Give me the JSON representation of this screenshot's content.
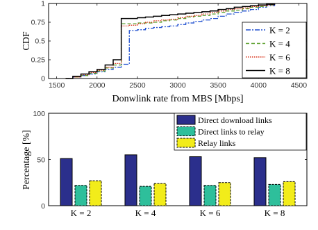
{
  "chart_data": [
    {
      "type": "line",
      "subtype": "cdf",
      "xlabel": "Donwlink rate from MBS [Mbps]",
      "ylabel": "CDF",
      "xlim": [
        1400,
        4600
      ],
      "ylim": [
        0,
        1
      ],
      "xticks": [
        "1500",
        "2000",
        "2500",
        "3000",
        "3500",
        "4000",
        "4500"
      ],
      "yticks": [
        "0",
        "0.25",
        "0.5",
        "0.75",
        "1"
      ],
      "legend": "right-middle",
      "series": [
        {
          "name": "K = 2",
          "color": "#1f4fcf",
          "dash": "7,2,2,2",
          "x": [
            1610,
            1700,
            1800,
            1900,
            2000,
            2100,
            2200,
            2300,
            2400,
            2500,
            2600,
            2700,
            2800,
            2900,
            3000,
            3100,
            3200,
            3300,
            3400,
            3500,
            3600,
            3700,
            3800,
            3900,
            4000,
            4100,
            4200
          ],
          "y": [
            0.0,
            0.02,
            0.04,
            0.06,
            0.09,
            0.12,
            0.15,
            0.19,
            0.64,
            0.65,
            0.67,
            0.68,
            0.69,
            0.7,
            0.72,
            0.74,
            0.76,
            0.78,
            0.8,
            0.83,
            0.86,
            0.88,
            0.9,
            0.92,
            0.95,
            0.97,
            1.0
          ]
        },
        {
          "name": "K = 4",
          "color": "#5aa02c",
          "dash": "5,3",
          "x": [
            1610,
            1700,
            1800,
            1900,
            2000,
            2100,
            2200,
            2300,
            2400,
            2500,
            2600,
            2700,
            2800,
            2900,
            3000,
            3100,
            3200,
            3300,
            3400,
            3500,
            3600,
            3700,
            3800,
            3900,
            4000,
            4100,
            4200
          ],
          "y": [
            0.0,
            0.02,
            0.04,
            0.07,
            0.1,
            0.14,
            0.18,
            0.73,
            0.73,
            0.74,
            0.74,
            0.75,
            0.77,
            0.78,
            0.8,
            0.82,
            0.83,
            0.84,
            0.86,
            0.88,
            0.9,
            0.91,
            0.93,
            0.95,
            0.96,
            0.98,
            1.0
          ]
        },
        {
          "name": "K = 6",
          "color": "#d9331a",
          "dash": "1.5,1.5",
          "x": [
            1610,
            1700,
            1800,
            1900,
            2000,
            2100,
            2200,
            2300,
            2400,
            2500,
            2600,
            2700,
            2800,
            2900,
            3000,
            3100,
            3200,
            3300,
            3400,
            3500,
            3600,
            3700,
            3800,
            3900,
            4000,
            4100,
            4200
          ],
          "y": [
            0.0,
            0.02,
            0.05,
            0.08,
            0.11,
            0.15,
            0.2,
            0.7,
            0.71,
            0.73,
            0.75,
            0.77,
            0.78,
            0.79,
            0.81,
            0.83,
            0.84,
            0.86,
            0.88,
            0.9,
            0.92,
            0.93,
            0.94,
            0.96,
            0.97,
            0.98,
            1.0
          ]
        },
        {
          "name": "K = 8",
          "color": "#000000",
          "dash": "",
          "x": [
            1610,
            1700,
            1800,
            1900,
            2000,
            2100,
            2200,
            2300,
            2400,
            2500,
            2600,
            2700,
            2800,
            2900,
            3000,
            3100,
            3200,
            3300,
            3400,
            3500,
            3600,
            3700,
            3800,
            3900,
            4000,
            4100,
            4200
          ],
          "y": [
            0.0,
            0.03,
            0.06,
            0.09,
            0.12,
            0.18,
            0.25,
            0.8,
            0.8,
            0.81,
            0.82,
            0.83,
            0.84,
            0.85,
            0.86,
            0.87,
            0.88,
            0.89,
            0.9,
            0.92,
            0.93,
            0.95,
            0.96,
            0.97,
            0.98,
            0.99,
            1.0
          ]
        }
      ]
    },
    {
      "type": "bar",
      "categories": [
        "K = 2",
        "K = 4",
        "K = 6",
        "K = 8"
      ],
      "ylabel": "Percentage [%]",
      "ylim": [
        0,
        100
      ],
      "yticks": [
        "0",
        "50",
        "100"
      ],
      "legend": "top-right",
      "series": [
        {
          "name": "Direct download links",
          "color": "#2b2f8c",
          "edge": "#000000",
          "values": [
            51,
            55,
            53,
            52
          ]
        },
        {
          "name": "Direct links to relay",
          "color": "#2ebf9b",
          "edge": "#000000",
          "values": [
            22,
            21,
            22,
            23
          ]
        },
        {
          "name": "Relay links",
          "color": "#f2ec1a",
          "edge": "#000000",
          "values": [
            27,
            24,
            25,
            26
          ]
        }
      ]
    }
  ]
}
